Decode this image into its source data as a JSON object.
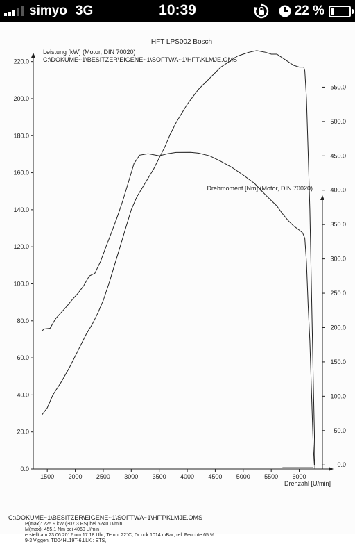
{
  "status_bar": {
    "carrier": "simyo",
    "network": "3G",
    "time": "10:39",
    "battery_percent": "22 %",
    "battery_level": 0.22,
    "signal_bars": 3,
    "icons": [
      "signal-icon",
      "rotation-lock-icon",
      "clock-icon",
      "battery-icon"
    ]
  },
  "chart_data": {
    "type": "line",
    "title": "HFT LPS002 Bosch",
    "file_path_top": "C:\\DOKUME~1\\BESITZER\\EIGENE~1\\SOFTWA~1\\HFT\\KLMJE.OMS",
    "xlabel": "Drehzahl [U/min]",
    "xlim": [
      1250,
      6600
    ],
    "x_ticks": [
      1500,
      2000,
      2500,
      3000,
      3500,
      4000,
      4500,
      5000,
      5500,
      6000
    ],
    "grid": false,
    "left_axis": {
      "label": "Leistung [kW] (Motor, DIN 70020)",
      "ylim": [
        0,
        230
      ],
      "ticks": [
        "0.0",
        "20.0",
        "40.0",
        "60.0",
        "80.0",
        "100.0",
        "120.0",
        "140.0",
        "160.0",
        "180.0",
        "200.0",
        "220.0"
      ]
    },
    "right_axis": {
      "label": "Drehmoment [Nm] (Motor, DIN 70020)",
      "ylim": [
        -20,
        600
      ],
      "ticks": [
        "0.0",
        "50.0",
        "100.0",
        "150.0",
        "200.0",
        "250.0",
        "300.0",
        "350.0",
        "400.0",
        "450.0",
        "500.0",
        "550.0"
      ]
    },
    "series": [
      {
        "axis": "left",
        "color": "#222222",
        "points": [
          [
            1400,
            29
          ],
          [
            1500,
            33
          ],
          [
            1600,
            40
          ],
          [
            1750,
            47
          ],
          [
            1900,
            55
          ],
          [
            2000,
            61
          ],
          [
            2100,
            67
          ],
          [
            2200,
            73
          ],
          [
            2300,
            78
          ],
          [
            2400,
            84
          ],
          [
            2500,
            91
          ],
          [
            2600,
            100
          ],
          [
            2700,
            110
          ],
          [
            2800,
            120
          ],
          [
            2900,
            130
          ],
          [
            3000,
            140
          ],
          [
            3100,
            147
          ],
          [
            3200,
            152
          ],
          [
            3300,
            157
          ],
          [
            3400,
            162
          ],
          [
            3500,
            168
          ],
          [
            3600,
            174
          ],
          [
            3700,
            181
          ],
          [
            3800,
            187
          ],
          [
            3900,
            192
          ],
          [
            4000,
            197
          ],
          [
            4100,
            201
          ],
          [
            4200,
            205
          ],
          [
            4300,
            208
          ],
          [
            4400,
            211
          ],
          [
            4500,
            214
          ],
          [
            4600,
            217
          ],
          [
            4700,
            219
          ],
          [
            4800,
            221
          ],
          [
            4900,
            223
          ],
          [
            5000,
            224
          ],
          [
            5100,
            225
          ],
          [
            5240,
            225.9
          ],
          [
            5400,
            225
          ],
          [
            5500,
            224
          ],
          [
            5600,
            224
          ],
          [
            5700,
            222
          ],
          [
            5800,
            220
          ],
          [
            5900,
            218
          ],
          [
            6000,
            217
          ],
          [
            6080,
            217
          ],
          [
            6100,
            215
          ],
          [
            6130,
            200
          ],
          [
            6160,
            170
          ],
          [
            6190,
            140
          ],
          [
            6210,
            110
          ],
          [
            6230,
            80
          ],
          [
            6250,
            50
          ],
          [
            6270,
            20
          ],
          [
            6280,
            0
          ]
        ]
      },
      {
        "axis": "right",
        "color": "#222222",
        "points": [
          [
            1400,
            195
          ],
          [
            1450,
            198
          ],
          [
            1550,
            199
          ],
          [
            1650,
            213
          ],
          [
            1750,
            222
          ],
          [
            1850,
            231
          ],
          [
            1950,
            241
          ],
          [
            2050,
            250
          ],
          [
            2150,
            261
          ],
          [
            2250,
            275
          ],
          [
            2350,
            279
          ],
          [
            2450,
            296
          ],
          [
            2550,
            318
          ],
          [
            2650,
            339
          ],
          [
            2750,
            361
          ],
          [
            2850,
            385
          ],
          [
            2950,
            412
          ],
          [
            3050,
            439
          ],
          [
            3150,
            451
          ],
          [
            3300,
            453
          ],
          [
            3500,
            450
          ],
          [
            3650,
            453
          ],
          [
            3800,
            455
          ],
          [
            4060,
            455.1
          ],
          [
            4200,
            454
          ],
          [
            4400,
            450
          ],
          [
            4600,
            442
          ],
          [
            4800,
            433
          ],
          [
            5000,
            422
          ],
          [
            5200,
            410
          ],
          [
            5400,
            393
          ],
          [
            5500,
            385
          ],
          [
            5600,
            377
          ],
          [
            5700,
            366
          ],
          [
            5800,
            356
          ],
          [
            5900,
            348
          ],
          [
            6000,
            342
          ],
          [
            6060,
            338
          ],
          [
            6100,
            330
          ],
          [
            6130,
            295
          ],
          [
            6160,
            230
          ],
          [
            6190,
            180
          ],
          [
            6210,
            130
          ],
          [
            6230,
            80
          ],
          [
            6250,
            30
          ],
          [
            6270,
            0
          ]
        ]
      }
    ]
  },
  "footer": {
    "path": "C:\\DOKUME~1\\BESITZER\\EIGENE~1\\SOFTWA~1\\HFT\\KLMJE.OMS",
    "pmax": "P(max): 225.9 kW (307.3 PS) bei 5240 U/min",
    "mmax": "M(max): 455.1 Nm bei 4060 U/min",
    "created": "erstellt am 23.06.2012 um 17:18 Uhr; Temp. 22°C; Dr uck 1014 mBar; rel. Feuchte 65 %",
    "vehicle": "9-3 Viggen, TD04HL19T-6.LLK : ETS,"
  }
}
